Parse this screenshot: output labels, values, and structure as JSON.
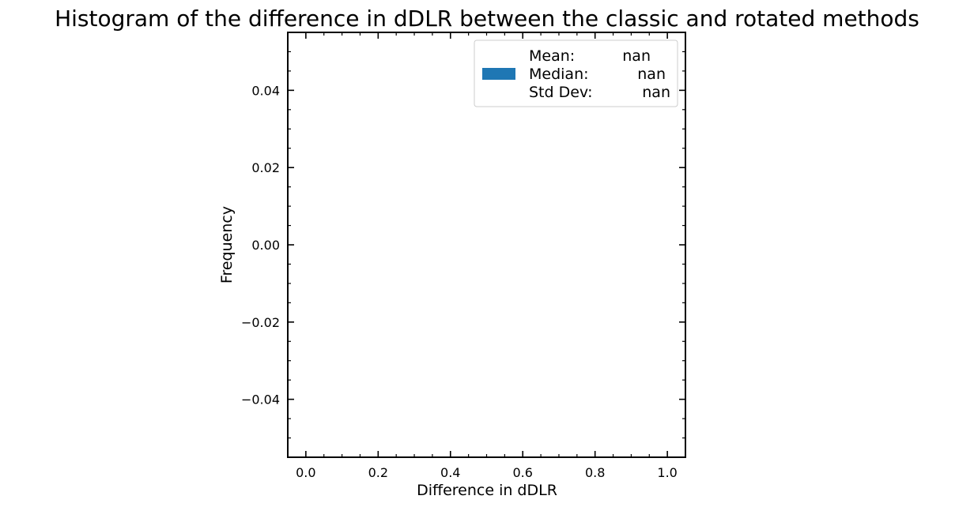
{
  "chart_data": {
    "type": "bar",
    "title": "Histogram of the difference in dDLR between the classic and rotated methods",
    "xlabel": "Difference in dDLR",
    "ylabel": "Frequency",
    "xlim": [
      -0.05,
      1.05
    ],
    "ylim": [
      -0.055,
      0.055
    ],
    "x_ticks": [
      0.0,
      0.2,
      0.4,
      0.6,
      0.8,
      1.0
    ],
    "x_tick_labels": [
      "0.0",
      "0.2",
      "0.4",
      "0.6",
      "0.8",
      "1.0"
    ],
    "y_ticks": [
      -0.04,
      -0.02,
      0.0,
      0.02,
      0.04
    ],
    "y_tick_labels": [
      "−0.04",
      "−0.02",
      "0.00",
      "0.02",
      "0.04"
    ],
    "bins": [],
    "values": [],
    "grid": false,
    "legend": {
      "placement": "top-right",
      "color": "#1f77b4",
      "lines": [
        {
          "label": "Mean:",
          "value": "nan"
        },
        {
          "label": "Median:",
          "value": "nan"
        },
        {
          "label": "Std Dev:",
          "value": "nan"
        }
      ]
    }
  }
}
